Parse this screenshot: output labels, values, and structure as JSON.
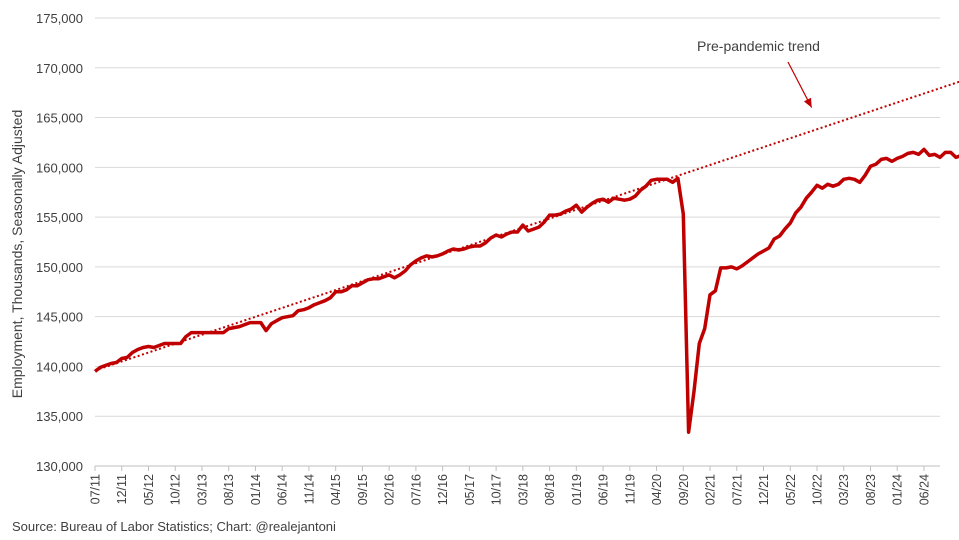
{
  "chart_data": {
    "type": "line",
    "title": "",
    "xlabel": "",
    "ylabel": "Employment, Thousands, Seasonally Adjusted",
    "ylim": [
      130000,
      175000
    ],
    "yticks": [
      "130,000",
      "135,000",
      "140,000",
      "145,000",
      "150,000",
      "155,000",
      "160,000",
      "165,000",
      "170,000",
      "175,000"
    ],
    "xlim": [
      "2011-07",
      "2024-09"
    ],
    "xticks": [
      "07/11",
      "12/11",
      "05/12",
      "10/12",
      "03/13",
      "08/13",
      "01/14",
      "06/14",
      "11/14",
      "04/15",
      "09/15",
      "02/16",
      "07/16",
      "12/16",
      "05/17",
      "10/17",
      "03/18",
      "08/18",
      "01/19",
      "06/19",
      "11/19",
      "04/20",
      "09/20",
      "02/21",
      "07/21",
      "12/21",
      "05/22",
      "10/22",
      "03/23",
      "08/23",
      "01/24",
      "06/24"
    ],
    "grid": true,
    "legend": "none",
    "series": [
      {
        "color": "#c00000",
        "style": "solid",
        "points": [
          [
            "2011-07",
            139500
          ],
          [
            "2011-08",
            139900
          ],
          [
            "2011-09",
            140100
          ],
          [
            "2011-10",
            140300
          ],
          [
            "2011-11",
            140400
          ],
          [
            "2011-12",
            140800
          ],
          [
            "2012-01",
            140900
          ],
          [
            "2012-02",
            141400
          ],
          [
            "2012-03",
            141700
          ],
          [
            "2012-04",
            141900
          ],
          [
            "2012-05",
            142000
          ],
          [
            "2012-06",
            141900
          ],
          [
            "2012-07",
            142100
          ],
          [
            "2012-08",
            142300
          ],
          [
            "2012-09",
            142300
          ],
          [
            "2012-10",
            142300
          ],
          [
            "2012-11",
            142300
          ],
          [
            "2012-12",
            143000
          ],
          [
            "2013-01",
            143400
          ],
          [
            "2013-02",
            143400
          ],
          [
            "2013-03",
            143400
          ],
          [
            "2013-04",
            143400
          ],
          [
            "2013-05",
            143400
          ],
          [
            "2013-06",
            143400
          ],
          [
            "2013-07",
            143400
          ],
          [
            "2013-08",
            143800
          ],
          [
            "2013-09",
            143900
          ],
          [
            "2013-10",
            144000
          ],
          [
            "2013-11",
            144200
          ],
          [
            "2013-12",
            144400
          ],
          [
            "2014-01",
            144400
          ],
          [
            "2014-02",
            144400
          ],
          [
            "2014-03",
            143600
          ],
          [
            "2014-04",
            144300
          ],
          [
            "2014-05",
            144600
          ],
          [
            "2014-06",
            144900
          ],
          [
            "2014-07",
            145000
          ],
          [
            "2014-08",
            145100
          ],
          [
            "2014-09",
            145600
          ],
          [
            "2014-10",
            145700
          ],
          [
            "2014-11",
            145900
          ],
          [
            "2014-12",
            146200
          ],
          [
            "2015-01",
            146400
          ],
          [
            "2015-02",
            146600
          ],
          [
            "2015-03",
            146900
          ],
          [
            "2015-04",
            147500
          ],
          [
            "2015-05",
            147500
          ],
          [
            "2015-06",
            147700
          ],
          [
            "2015-07",
            148100
          ],
          [
            "2015-08",
            148100
          ],
          [
            "2015-09",
            148400
          ],
          [
            "2015-10",
            148700
          ],
          [
            "2015-11",
            148800
          ],
          [
            "2015-12",
            148800
          ],
          [
            "2016-01",
            149000
          ],
          [
            "2016-02",
            149200
          ],
          [
            "2016-03",
            148900
          ],
          [
            "2016-04",
            149200
          ],
          [
            "2016-05",
            149600
          ],
          [
            "2016-06",
            150200
          ],
          [
            "2016-07",
            150600
          ],
          [
            "2016-08",
            150900
          ],
          [
            "2016-09",
            151100
          ],
          [
            "2016-10",
            151000
          ],
          [
            "2016-11",
            151100
          ],
          [
            "2016-12",
            151300
          ],
          [
            "2017-01",
            151600
          ],
          [
            "2017-02",
            151800
          ],
          [
            "2017-03",
            151700
          ],
          [
            "2017-04",
            151800
          ],
          [
            "2017-05",
            152000
          ],
          [
            "2017-06",
            152100
          ],
          [
            "2017-07",
            152100
          ],
          [
            "2017-08",
            152400
          ],
          [
            "2017-09",
            152900
          ],
          [
            "2017-10",
            153200
          ],
          [
            "2017-11",
            153000
          ],
          [
            "2017-12",
            153300
          ],
          [
            "2018-01",
            153500
          ],
          [
            "2018-02",
            153500
          ],
          [
            "2018-03",
            154200
          ],
          [
            "2018-04",
            153600
          ],
          [
            "2018-05",
            153800
          ],
          [
            "2018-06",
            154000
          ],
          [
            "2018-07",
            154500
          ],
          [
            "2018-08",
            155200
          ],
          [
            "2018-09",
            155200
          ],
          [
            "2018-10",
            155300
          ],
          [
            "2018-11",
            155600
          ],
          [
            "2018-12",
            155800
          ],
          [
            "2019-01",
            156200
          ],
          [
            "2019-02",
            155500
          ],
          [
            "2019-03",
            156000
          ],
          [
            "2019-04",
            156400
          ],
          [
            "2019-05",
            156700
          ],
          [
            "2019-06",
            156800
          ],
          [
            "2019-07",
            156500
          ],
          [
            "2019-08",
            156900
          ],
          [
            "2019-09",
            156800
          ],
          [
            "2019-10",
            156700
          ],
          [
            "2019-11",
            156800
          ],
          [
            "2019-12",
            157100
          ],
          [
            "2020-01",
            157700
          ],
          [
            "2020-02",
            158100
          ],
          [
            "2020-03",
            158700
          ],
          [
            "2020-04",
            158800
          ],
          [
            "2020-05",
            158800
          ],
          [
            "2020-06",
            158800
          ],
          [
            "2020-07",
            158500
          ],
          [
            "2020-08",
            158900
          ],
          [
            "2020-09",
            155300
          ],
          [
            "2020-10",
            133400
          ],
          [
            "2020-11",
            137500
          ],
          [
            "2020-12",
            142300
          ],
          [
            "2021-01",
            143800
          ],
          [
            "2021-02",
            147200
          ],
          [
            "2021-03",
            147600
          ],
          [
            "2021-04",
            149900
          ],
          [
            "2021-05",
            149900
          ],
          [
            "2021-06",
            150000
          ],
          [
            "2021-07",
            149800
          ],
          [
            "2021-08",
            150100
          ],
          [
            "2021-09",
            150500
          ],
          [
            "2021-10",
            150900
          ],
          [
            "2021-11",
            151300
          ],
          [
            "2021-12",
            151600
          ],
          [
            "2022-01",
            151900
          ],
          [
            "2022-02",
            152800
          ],
          [
            "2022-03",
            153100
          ],
          [
            "2022-04",
            153800
          ],
          [
            "2022-05",
            154400
          ],
          [
            "2022-06",
            155400
          ],
          [
            "2022-07",
            156000
          ],
          [
            "2022-08",
            156900
          ],
          [
            "2022-09",
            157500
          ],
          [
            "2022-10",
            158200
          ],
          [
            "2022-11",
            157900
          ],
          [
            "2022-12",
            158300
          ],
          [
            "2023-01",
            158100
          ],
          [
            "2023-02",
            158300
          ],
          [
            "2023-03",
            158800
          ],
          [
            "2023-04",
            158900
          ],
          [
            "2023-05",
            158800
          ],
          [
            "2023-06",
            158500
          ],
          [
            "2023-07",
            159200
          ],
          [
            "2023-08",
            160100
          ],
          [
            "2023-09",
            160300
          ],
          [
            "2023-10",
            160800
          ],
          [
            "2023-11",
            160900
          ],
          [
            "2023-12",
            160600
          ],
          [
            "2024-01",
            160900
          ],
          [
            "2024-02",
            161100
          ],
          [
            "2024-03",
            161400
          ],
          [
            "2024-04",
            161500
          ],
          [
            "2024-05",
            161300
          ],
          [
            "2024-06",
            161800
          ],
          [
            "2024-07",
            161200
          ],
          [
            "2024-08",
            161300
          ],
          [
            "2024-09",
            161000
          ],
          [
            "2024-10",
            161500
          ],
          [
            "2024-11",
            161500
          ],
          [
            "2024-12",
            161000
          ],
          [
            "2025-01",
            161200
          ],
          [
            "2025-02",
            161200
          ],
          [
            "2025-03",
            161400
          ]
        ]
      },
      {
        "color": "#c00000",
        "style": "dotted",
        "points": [
          [
            "2011-07",
            139600
          ],
          [
            "2025-04",
            169200
          ]
        ]
      }
    ],
    "annotations": [
      {
        "text": "Pre-pandemic trend",
        "points_to": [
          "2022-09",
          165500
        ]
      }
    ],
    "source": "Source: Bureau of Labor Statistics; Chart: @realejantoni"
  }
}
